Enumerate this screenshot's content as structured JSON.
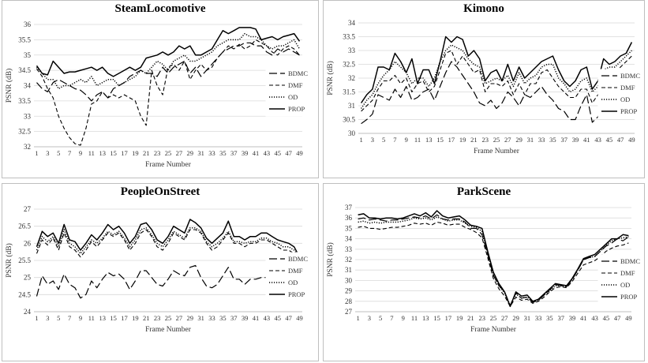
{
  "series_styles": [
    {
      "name": "BDMC",
      "dash": "10,4",
      "width": 1.2
    },
    {
      "name": "DMF",
      "dash": "5,3",
      "width": 1.1
    },
    {
      "name": "OD",
      "dash": "1.2,1.8",
      "width": 1.5
    },
    {
      "name": "PROP",
      "dash": "",
      "width": 1.5
    }
  ],
  "line_color": "#000000",
  "chart_data": [
    {
      "type": "line",
      "title": "SteamLocomotive",
      "xlabel": "Frame Number",
      "ylabel": "PSNR (dB)",
      "ylim": [
        32,
        36
      ],
      "ytick_labels": [
        "32",
        "32.5",
        "33",
        "33.5",
        "34",
        "34.5",
        "35",
        "35.5",
        "36"
      ],
      "xtick_labels": [
        "1",
        "3",
        "5",
        "7",
        "9",
        "11",
        "13",
        "15",
        "17",
        "19",
        "21",
        "23",
        "25",
        "27",
        "29",
        "31",
        "33",
        "35",
        "37",
        "39",
        "41",
        "43",
        "45",
        "47",
        "49"
      ],
      "legend": [
        "BDMC",
        "DMF",
        "OD",
        "PROP"
      ],
      "legend_position": "lower-right",
      "series": [
        {
          "name": "BDMC",
          "values": [
            34.1,
            33.9,
            33.8,
            34.1,
            34.2,
            34.1,
            34.0,
            33.9,
            33.85,
            33.7,
            33.5,
            33.7,
            33.8,
            33.6,
            33.9,
            34.0,
            34.1,
            34.3,
            34.4,
            34.5,
            34.4,
            34.4,
            34.3,
            34.6,
            34.4,
            34.6,
            34.7,
            34.8,
            34.4,
            34.6,
            34.3,
            34.5,
            34.7,
            34.9,
            35.1,
            35.2,
            35.3,
            35.3,
            35.4,
            35.4,
            35.3,
            35.3,
            35.1,
            35.0,
            35.2,
            35.1,
            35.2,
            35.1,
            35.0
          ]
        },
        {
          "name": "DMF",
          "values": [
            34.55,
            34.3,
            33.9,
            33.6,
            33.0,
            32.6,
            32.3,
            32.1,
            32.05,
            32.6,
            33.4,
            33.5,
            33.8,
            33.6,
            33.7,
            33.6,
            33.7,
            33.6,
            33.5,
            33.0,
            32.7,
            34.5,
            34.0,
            33.7,
            34.6,
            34.7,
            34.5,
            34.8,
            34.2,
            34.5,
            34.7,
            34.5,
            34.6,
            34.9,
            35.1,
            35.3,
            35.2,
            35.35,
            35.2,
            35.3,
            35.5,
            35.4,
            35.3,
            35.1,
            35.0,
            35.2,
            35.3,
            35.2,
            35.0
          ]
        },
        {
          "name": "OD",
          "values": [
            34.6,
            34.4,
            34.2,
            34.2,
            33.9,
            34.0,
            34.0,
            34.1,
            34.2,
            34.1,
            34.3,
            34.0,
            34.1,
            34.2,
            34.2,
            34.0,
            34.1,
            34.2,
            34.3,
            34.5,
            34.4,
            34.6,
            34.8,
            34.7,
            34.5,
            34.8,
            34.9,
            35.0,
            34.8,
            34.8,
            34.9,
            35.0,
            35.1,
            35.3,
            35.4,
            35.5,
            35.5,
            35.5,
            35.7,
            35.6,
            35.6,
            35.5,
            35.3,
            35.2,
            35.3,
            35.3,
            35.4,
            35.5,
            35.2
          ]
        },
        {
          "name": "PROP",
          "values": [
            34.65,
            34.4,
            34.35,
            34.8,
            34.6,
            34.4,
            34.45,
            34.45,
            34.5,
            34.55,
            34.6,
            34.5,
            34.6,
            34.4,
            34.3,
            34.4,
            34.5,
            34.6,
            34.5,
            34.6,
            34.9,
            34.95,
            35.0,
            35.1,
            35.0,
            35.1,
            35.3,
            35.2,
            35.3,
            35.0,
            35.0,
            35.1,
            35.2,
            35.5,
            35.8,
            35.7,
            35.8,
            35.9,
            35.9,
            35.9,
            35.85,
            35.5,
            35.55,
            35.6,
            35.5,
            35.6,
            35.65,
            35.7,
            35.45
          ]
        }
      ]
    },
    {
      "type": "line",
      "title": "Kimono",
      "xlabel": "Frame Number",
      "ylabel": "PSNR (dB)",
      "ylim": [
        30,
        34
      ],
      "ytick_labels": [
        "30",
        "30.5",
        "31",
        "31.5",
        "32",
        "32.5",
        "33",
        "33.5",
        "34"
      ],
      "xtick_labels": [
        "1",
        "3",
        "5",
        "7",
        "9",
        "11",
        "13",
        "15",
        "17",
        "19",
        "21",
        "23",
        "25",
        "27",
        "29",
        "31",
        "33",
        "35",
        "37",
        "39",
        "41",
        "43",
        "45",
        "47",
        "49"
      ],
      "legend": [
        "BDMC",
        "DMF",
        "OD",
        "PROP"
      ],
      "legend_position": "upper-right",
      "series": [
        {
          "name": "BDMC",
          "values": [
            30.35,
            30.5,
            30.7,
            31.4,
            31.3,
            31.2,
            31.6,
            31.3,
            31.7,
            31.2,
            31.3,
            31.5,
            31.6,
            31.2,
            31.7,
            32.2,
            32.6,
            32.4,
            32.1,
            31.8,
            31.5,
            31.1,
            31.0,
            31.2,
            30.9,
            31.1,
            31.5,
            31.3,
            31.0,
            31.4,
            31.3,
            31.5,
            31.7,
            31.4,
            31.2,
            30.9,
            30.8,
            30.5,
            30.5,
            31.0,
            31.4,
            30.4,
            30.6,
            31.2,
            31.3,
            31.3,
            31.4,
            31.6,
            32.1
          ]
        },
        {
          "name": "DMF",
          "values": [
            30.8,
            31.0,
            31.2,
            31.6,
            31.9,
            31.9,
            32.1,
            31.8,
            32.0,
            31.5,
            31.8,
            31.9,
            31.5,
            31.7,
            32.3,
            32.9,
            33.0,
            32.5,
            32.8,
            32.5,
            32.2,
            32.3,
            31.5,
            31.8,
            31.8,
            31.7,
            31.9,
            31.4,
            31.8,
            31.4,
            31.8,
            31.8,
            32.2,
            32.3,
            32.0,
            31.7,
            31.5,
            31.3,
            31.3,
            31.6,
            31.6,
            31.1,
            31.4,
            31.9,
            32.0,
            32.2,
            32.4,
            32.6,
            32.8
          ]
        },
        {
          "name": "OD",
          "values": [
            30.9,
            31.2,
            31.4,
            31.8,
            32.1,
            32.3,
            32.6,
            32.4,
            32.2,
            31.8,
            32.0,
            32.0,
            31.7,
            32.0,
            32.6,
            33.0,
            33.2,
            33.1,
            33.0,
            32.7,
            32.5,
            32.4,
            31.8,
            31.9,
            32.0,
            31.9,
            32.1,
            31.7,
            32.2,
            31.8,
            32.0,
            32.1,
            32.4,
            32.5,
            32.5,
            32.0,
            31.8,
            31.5,
            31.6,
            31.9,
            32.0,
            31.5,
            31.7,
            32.3,
            32.4,
            32.4,
            32.6,
            32.8,
            33.0
          ]
        },
        {
          "name": "PROP",
          "values": [
            31.1,
            31.4,
            31.6,
            32.4,
            32.4,
            32.3,
            32.9,
            32.6,
            32.2,
            32.7,
            31.8,
            32.3,
            32.3,
            31.8,
            32.6,
            33.5,
            33.3,
            33.5,
            33.4,
            32.8,
            33.0,
            32.7,
            31.9,
            32.2,
            32.3,
            31.9,
            32.5,
            31.9,
            32.4,
            32.0,
            32.2,
            32.4,
            32.6,
            32.7,
            32.8,
            32.3,
            31.9,
            31.7,
            31.9,
            32.3,
            32.4,
            31.6,
            31.9,
            32.7,
            32.5,
            32.6,
            32.8,
            32.9,
            33.3
          ]
        }
      ]
    },
    {
      "type": "line",
      "title": "PeopleOnStreet",
      "xlabel": "Frame Number",
      "ylabel": "PSNR (dB)",
      "ylim": [
        24,
        27
      ],
      "ytick_labels": [
        "24",
        "24.5",
        "25",
        "25.5",
        "26",
        "26.5",
        "27"
      ],
      "xtick_labels": [
        "1",
        "3",
        "5",
        "7",
        "9",
        "11",
        "13",
        "15",
        "17",
        "19",
        "21",
        "23",
        "25",
        "27",
        "29",
        "31",
        "33",
        "35",
        "37",
        "39",
        "41",
        "43",
        "45",
        "47",
        "49"
      ],
      "legend": [
        "BDMC",
        "DMF",
        "OD",
        "PROP"
      ],
      "legend_position": "lower-right",
      "series": [
        {
          "name": "BDMC",
          "values": [
            24.45,
            25.05,
            24.8,
            24.9,
            24.65,
            25.1,
            24.8,
            24.7,
            24.4,
            24.5,
            24.9,
            24.7,
            24.95,
            25.15,
            25.05,
            25.1,
            24.95,
            24.65,
            24.9,
            25.2,
            25.2,
            25.0,
            24.8,
            24.75,
            24.95,
            25.2,
            25.1,
            25.05,
            25.3,
            25.35,
            25.0,
            24.75,
            24.7,
            24.8,
            25.05,
            25.3,
            24.95,
            24.95,
            24.8,
            24.95,
            24.95,
            25.0,
            25.0,
            24.95,
            24.85,
            24.75,
            24.7,
            24.4,
            24.4
          ]
        },
        {
          "name": "DMF",
          "values": [
            25.7,
            26.1,
            25.95,
            26.15,
            25.8,
            26.3,
            25.9,
            25.8,
            25.6,
            25.8,
            26.05,
            25.9,
            26.1,
            26.3,
            26.2,
            26.3,
            26.1,
            25.8,
            26.0,
            26.3,
            26.4,
            26.2,
            25.9,
            25.8,
            26.0,
            26.3,
            26.2,
            26.1,
            26.4,
            26.4,
            26.3,
            26.0,
            25.8,
            25.9,
            26.1,
            26.3,
            26.0,
            26.0,
            25.9,
            26.0,
            26.0,
            26.1,
            26.1,
            26.0,
            25.9,
            25.8,
            25.8,
            25.7,
            25.5
          ]
        },
        {
          "name": "OD",
          "values": [
            25.8,
            26.2,
            26.05,
            26.2,
            25.9,
            26.4,
            26.0,
            25.9,
            25.7,
            25.9,
            26.1,
            26.0,
            26.15,
            26.35,
            26.25,
            26.35,
            26.15,
            25.9,
            26.1,
            26.4,
            26.45,
            26.25,
            26.0,
            25.9,
            26.1,
            26.35,
            26.25,
            26.15,
            26.45,
            26.45,
            26.35,
            26.05,
            25.9,
            26.0,
            26.15,
            26.35,
            26.05,
            26.05,
            26.0,
            26.05,
            26.05,
            26.15,
            26.15,
            26.05,
            26.0,
            25.9,
            25.9,
            25.8,
            25.6
          ]
        },
        {
          "name": "PROP",
          "values": [
            25.9,
            26.35,
            26.2,
            26.3,
            26.0,
            26.55,
            26.1,
            26.05,
            25.8,
            26.0,
            26.25,
            26.1,
            26.3,
            26.55,
            26.4,
            26.5,
            26.3,
            26.0,
            26.2,
            26.55,
            26.6,
            26.4,
            26.1,
            26.0,
            26.2,
            26.5,
            26.4,
            26.3,
            26.7,
            26.6,
            26.45,
            26.15,
            26.0,
            26.15,
            26.3,
            26.65,
            26.2,
            26.2,
            26.1,
            26.2,
            26.2,
            26.3,
            26.3,
            26.2,
            26.1,
            26.05,
            26.0,
            25.9,
            25.6
          ]
        }
      ]
    },
    {
      "type": "line",
      "title": "ParkScene",
      "xlabel": "Frame Number",
      "ylabel": "PSNR (dB)",
      "ylim": [
        27,
        37
      ],
      "ytick_labels": [
        "27",
        "28",
        "29",
        "30",
        "31",
        "32",
        "33",
        "34",
        "35",
        "36",
        "37"
      ],
      "xtick_labels": [
        "1",
        "3",
        "5",
        "7",
        "9",
        "11",
        "13",
        "15",
        "17",
        "19",
        "21",
        "23",
        "25",
        "27",
        "29",
        "31",
        "33",
        "35",
        "37",
        "39",
        "41",
        "43",
        "45",
        "47",
        "49"
      ],
      "legend": [
        "BDMC",
        "DMF",
        "OD",
        "PROP"
      ],
      "legend_position": "lower-right",
      "series": [
        {
          "name": "BDMC",
          "values": [
            35.9,
            36.0,
            35.8,
            35.9,
            35.8,
            35.7,
            35.8,
            35.8,
            35.9,
            36.0,
            36.1,
            36.0,
            36.2,
            35.9,
            36.3,
            35.9,
            35.8,
            35.9,
            35.9,
            35.6,
            35.0,
            35.0,
            34.4,
            32.5,
            30.5,
            29.5,
            28.9,
            27.6,
            28.8,
            28.3,
            28.4,
            27.9,
            28.1,
            28.6,
            29.1,
            29.6,
            29.5,
            29.4,
            30.1,
            31.0,
            32.0,
            32.2,
            32.3,
            32.8,
            33.3,
            33.6,
            34.0,
            33.8,
            34.2
          ]
        },
        {
          "name": "DMF",
          "values": [
            35.1,
            35.2,
            35.0,
            35.0,
            34.9,
            35.0,
            35.1,
            35.1,
            35.2,
            35.3,
            35.5,
            35.4,
            35.5,
            35.3,
            35.6,
            35.5,
            35.3,
            35.4,
            35.4,
            35.1,
            34.9,
            34.6,
            34.1,
            32.2,
            30.2,
            29.2,
            28.5,
            27.5,
            28.4,
            28.1,
            28.2,
            27.8,
            28.0,
            28.4,
            28.9,
            29.3,
            29.4,
            29.3,
            29.9,
            30.7,
            31.5,
            31.7,
            31.9,
            32.3,
            32.8,
            33.1,
            33.3,
            33.4,
            33.6
          ]
        },
        {
          "name": "OD",
          "values": [
            35.6,
            35.7,
            35.5,
            35.6,
            35.5,
            35.6,
            35.6,
            35.6,
            35.7,
            35.8,
            36.0,
            35.9,
            36.0,
            35.8,
            36.1,
            35.9,
            35.7,
            35.8,
            35.8,
            35.5,
            35.2,
            35.1,
            34.7,
            32.6,
            30.6,
            29.5,
            28.8,
            27.6,
            28.7,
            28.3,
            28.4,
            27.9,
            28.1,
            28.6,
            29.0,
            29.5,
            29.5,
            29.4,
            30.1,
            31.0,
            32.0,
            32.2,
            32.3,
            32.8,
            33.4,
            33.8,
            34.0,
            34.1,
            34.2
          ]
        },
        {
          "name": "PROP",
          "values": [
            36.3,
            36.4,
            36.0,
            36.0,
            35.9,
            36.0,
            36.0,
            35.9,
            36.0,
            36.2,
            36.4,
            36.2,
            36.5,
            36.1,
            36.7,
            36.2,
            36.0,
            36.1,
            36.2,
            35.8,
            35.3,
            35.2,
            35.0,
            32.8,
            30.8,
            29.7,
            28.9,
            27.5,
            28.9,
            28.5,
            28.6,
            28.0,
            28.2,
            28.7,
            29.2,
            29.7,
            29.6,
            29.5,
            30.2,
            31.1,
            32.1,
            32.3,
            32.5,
            33.0,
            33.5,
            34.0,
            34.0,
            34.4,
            34.3
          ]
        }
      ]
    }
  ]
}
